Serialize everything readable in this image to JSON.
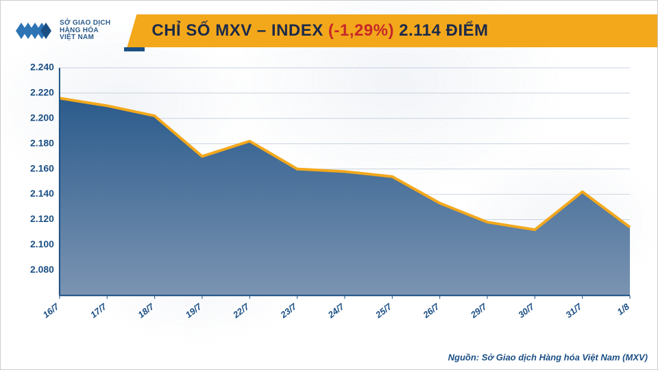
{
  "logo": {
    "line1": "SỞ GIAO DỊCH",
    "line2": "HÀNG HÓA",
    "line3": "VIỆT NAM",
    "mark_primary": "#2d74b5",
    "mark_secondary": "#1b4f84"
  },
  "title": {
    "prefix": "CHỈ SỐ MXV – INDEX ",
    "pct": "(-1,29%)",
    "suffix": " 2.114 ĐIỂM",
    "bar_color": "#f3a81c",
    "text_color": "#1b2a4a",
    "pct_color": "#c62828",
    "fontsize": 24
  },
  "chart": {
    "type": "area",
    "x_labels": [
      "16/7",
      "17/7",
      "18/7",
      "19/7",
      "22/7",
      "23/7",
      "24/7",
      "25/7",
      "26/7",
      "29/7",
      "30/7",
      "31/7",
      "1/8"
    ],
    "values": [
      2216,
      2210,
      2202,
      2170,
      2182,
      2160,
      2158,
      2154,
      2133,
      2118,
      2112,
      2142,
      2114
    ],
    "ylim": [
      2060,
      2240
    ],
    "ytick_step": 20,
    "y_tick_format": "thousand_dot",
    "line_color": "#f3a81c",
    "line_width": 4,
    "area_gradient_top": "#2b5b8c",
    "area_gradient_bottom": "#7b94b2",
    "grid_color": "#c8d2de",
    "axis_color": "#1b4f84",
    "label_color": "#1b4f84",
    "label_fontsize": 14,
    "x_label_rotation": -38,
    "background": "#ffffff"
  },
  "source": {
    "label": "Nguồn: Sở Giao dịch Hàng hóa Việt Nam (MXV)",
    "color": "#1b4f84"
  }
}
